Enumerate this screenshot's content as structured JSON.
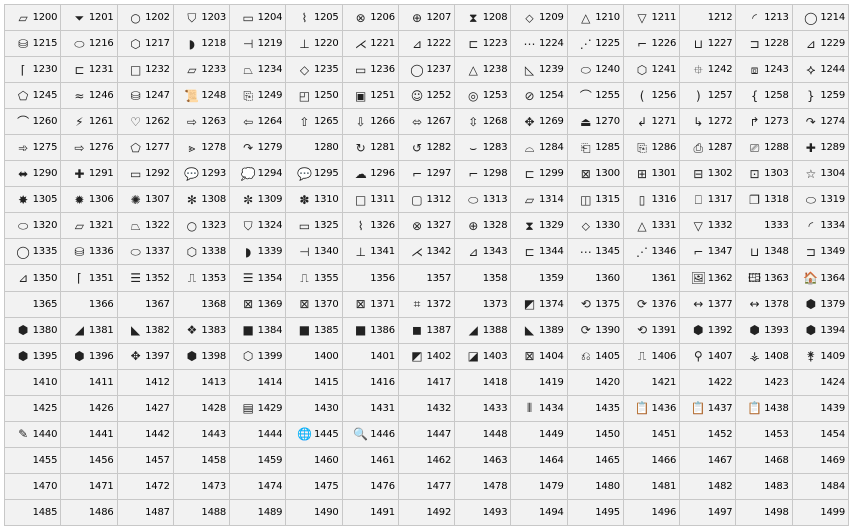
{
  "grid": {
    "columns": 15,
    "cells": [
      {
        "num": "1200",
        "glyph": "▱"
      },
      {
        "num": "1201",
        "glyph": "⏷"
      },
      {
        "num": "1202",
        "glyph": "○"
      },
      {
        "num": "1203",
        "glyph": "⛉"
      },
      {
        "num": "1204",
        "glyph": "▭"
      },
      {
        "num": "1205",
        "glyph": "⌇"
      },
      {
        "num": "1206",
        "glyph": "⊗"
      },
      {
        "num": "1207",
        "glyph": "⊕"
      },
      {
        "num": "1208",
        "glyph": "⧗"
      },
      {
        "num": "1209",
        "glyph": "⬦"
      },
      {
        "num": "1210",
        "glyph": "△"
      },
      {
        "num": "1211",
        "glyph": "▽"
      },
      {
        "num": "1212",
        "glyph": ""
      },
      {
        "num": "1213",
        "glyph": "◜"
      },
      {
        "num": "1214",
        "glyph": "◯"
      },
      {
        "num": "1215",
        "glyph": "⛁"
      },
      {
        "num": "1216",
        "glyph": "⬭"
      },
      {
        "num": "1217",
        "glyph": "⬡"
      },
      {
        "num": "1218",
        "glyph": "◗"
      },
      {
        "num": "1219",
        "glyph": "⊣"
      },
      {
        "num": "1220",
        "glyph": "⊥"
      },
      {
        "num": "1221",
        "glyph": "⋌"
      },
      {
        "num": "1222",
        "glyph": "⊿"
      },
      {
        "num": "1223",
        "glyph": "⊏"
      },
      {
        "num": "1224",
        "glyph": "⋯"
      },
      {
        "num": "1225",
        "glyph": "⋰"
      },
      {
        "num": "1226",
        "glyph": "⌐"
      },
      {
        "num": "1227",
        "glyph": "⊔"
      },
      {
        "num": "1228",
        "glyph": "⊐"
      },
      {
        "num": "1229",
        "glyph": "⊿"
      },
      {
        "num": "1230",
        "glyph": "⌈"
      },
      {
        "num": "1231",
        "glyph": "⊏"
      },
      {
        "num": "1232",
        "glyph": "□"
      },
      {
        "num": "1233",
        "glyph": "▱"
      },
      {
        "num": "1234",
        "glyph": "⏢"
      },
      {
        "num": "1235",
        "glyph": "◇"
      },
      {
        "num": "1236",
        "glyph": "▭"
      },
      {
        "num": "1237",
        "glyph": "◯"
      },
      {
        "num": "1238",
        "glyph": "△"
      },
      {
        "num": "1239",
        "glyph": "◺"
      },
      {
        "num": "1240",
        "glyph": "⬭"
      },
      {
        "num": "1241",
        "glyph": "⬡"
      },
      {
        "num": "1242",
        "glyph": "⯐"
      },
      {
        "num": "1243",
        "glyph": "⧈"
      },
      {
        "num": "1244",
        "glyph": "⯎"
      },
      {
        "num": "1245",
        "glyph": "⬠"
      },
      {
        "num": "1246",
        "glyph": "≈"
      },
      {
        "num": "1247",
        "glyph": "⛁"
      },
      {
        "num": "1248",
        "glyph": "📜"
      },
      {
        "num": "1249",
        "glyph": "⎘"
      },
      {
        "num": "1250",
        "glyph": "◰"
      },
      {
        "num": "1251",
        "glyph": "▣"
      },
      {
        "num": "1252",
        "glyph": "☺"
      },
      {
        "num": "1253",
        "glyph": "◎"
      },
      {
        "num": "1254",
        "glyph": "⊘"
      },
      {
        "num": "1255",
        "glyph": "⌒"
      },
      {
        "num": "1256",
        "glyph": "("
      },
      {
        "num": "1257",
        "glyph": ")"
      },
      {
        "num": "1258",
        "glyph": "{"
      },
      {
        "num": "1259",
        "glyph": "}"
      },
      {
        "num": "1260",
        "glyph": "⌒"
      },
      {
        "num": "1261",
        "glyph": "⚡"
      },
      {
        "num": "1262",
        "glyph": "♡"
      },
      {
        "num": "1263",
        "glyph": "⇨"
      },
      {
        "num": "1264",
        "glyph": "⇦"
      },
      {
        "num": "1265",
        "glyph": "⇧"
      },
      {
        "num": "1266",
        "glyph": "⇩"
      },
      {
        "num": "1267",
        "glyph": "⬄"
      },
      {
        "num": "1268",
        "glyph": "⇳"
      },
      {
        "num": "1269",
        "glyph": "✥"
      },
      {
        "num": "1270",
        "glyph": "⏏"
      },
      {
        "num": "1271",
        "glyph": "↲"
      },
      {
        "num": "1272",
        "glyph": "↳"
      },
      {
        "num": "1273",
        "glyph": "↱"
      },
      {
        "num": "1274",
        "glyph": "↷"
      },
      {
        "num": "1275",
        "glyph": "➾"
      },
      {
        "num": "1276",
        "glyph": "⇨"
      },
      {
        "num": "1277",
        "glyph": "⬠"
      },
      {
        "num": "1278",
        "glyph": "⪢"
      },
      {
        "num": "1279",
        "glyph": "↷"
      },
      {
        "num": "1280",
        "glyph": ""
      },
      {
        "num": "1281",
        "glyph": "↻"
      },
      {
        "num": "1282",
        "glyph": "↺"
      },
      {
        "num": "1283",
        "glyph": "⌣"
      },
      {
        "num": "1284",
        "glyph": "⌓"
      },
      {
        "num": "1285",
        "glyph": "⎗"
      },
      {
        "num": "1286",
        "glyph": "⎘"
      },
      {
        "num": "1287",
        "glyph": "⎙"
      },
      {
        "num": "1288",
        "glyph": "⎚"
      },
      {
        "num": "1289",
        "glyph": "✚"
      },
      {
        "num": "1290",
        "glyph": "⬌"
      },
      {
        "num": "1291",
        "glyph": "✚"
      },
      {
        "num": "1292",
        "glyph": "▭"
      },
      {
        "num": "1293",
        "glyph": "💬"
      },
      {
        "num": "1294",
        "glyph": "💭"
      },
      {
        "num": "1295",
        "glyph": "💬"
      },
      {
        "num": "1296",
        "glyph": "☁"
      },
      {
        "num": "1297",
        "glyph": "⌐"
      },
      {
        "num": "1298",
        "glyph": "⌐"
      },
      {
        "num": "1299",
        "glyph": "⊏"
      },
      {
        "num": "1300",
        "glyph": "⊠"
      },
      {
        "num": "1301",
        "glyph": "⊞"
      },
      {
        "num": "1302",
        "glyph": "⊟"
      },
      {
        "num": "1303",
        "glyph": "⊡"
      },
      {
        "num": "1304",
        "glyph": "☆"
      },
      {
        "num": "1305",
        "glyph": "✸"
      },
      {
        "num": "1306",
        "glyph": "✹"
      },
      {
        "num": "1307",
        "glyph": "✺"
      },
      {
        "num": "1308",
        "glyph": "✻"
      },
      {
        "num": "1309",
        "glyph": "✼"
      },
      {
        "num": "1310",
        "glyph": "✽"
      },
      {
        "num": "1311",
        "glyph": "□"
      },
      {
        "num": "1312",
        "glyph": "▢"
      },
      {
        "num": "1313",
        "glyph": "⬭"
      },
      {
        "num": "1314",
        "glyph": "▱"
      },
      {
        "num": "1315",
        "glyph": "◫"
      },
      {
        "num": "1316",
        "glyph": "▯"
      },
      {
        "num": "1317",
        "glyph": "⎕"
      },
      {
        "num": "1318",
        "glyph": "❐"
      },
      {
        "num": "1319",
        "glyph": "⬭"
      },
      {
        "num": "1320",
        "glyph": "⬭"
      },
      {
        "num": "1321",
        "glyph": "▱"
      },
      {
        "num": "1322",
        "glyph": "⏢"
      },
      {
        "num": "1323",
        "glyph": "○"
      },
      {
        "num": "1324",
        "glyph": "⛉"
      },
      {
        "num": "1325",
        "glyph": "▭"
      },
      {
        "num": "1326",
        "glyph": "⌇"
      },
      {
        "num": "1327",
        "glyph": "⊗"
      },
      {
        "num": "1328",
        "glyph": "⊕"
      },
      {
        "num": "1329",
        "glyph": "⧗"
      },
      {
        "num": "1330",
        "glyph": "⬦"
      },
      {
        "num": "1331",
        "glyph": "△"
      },
      {
        "num": "1332",
        "glyph": "▽"
      },
      {
        "num": "1333",
        "glyph": ""
      },
      {
        "num": "1334",
        "glyph": "◜"
      },
      {
        "num": "1335",
        "glyph": "◯"
      },
      {
        "num": "1336",
        "glyph": "⛁"
      },
      {
        "num": "1337",
        "glyph": "⬭"
      },
      {
        "num": "1338",
        "glyph": "⬡"
      },
      {
        "num": "1339",
        "glyph": "◗"
      },
      {
        "num": "1340",
        "glyph": "⊣"
      },
      {
        "num": "1341",
        "glyph": "⊥"
      },
      {
        "num": "1342",
        "glyph": "⋌"
      },
      {
        "num": "1343",
        "glyph": "⊿"
      },
      {
        "num": "1344",
        "glyph": "⊏"
      },
      {
        "num": "1345",
        "glyph": "⋯"
      },
      {
        "num": "1346",
        "glyph": "⋰"
      },
      {
        "num": "1347",
        "glyph": "⌐"
      },
      {
        "num": "1348",
        "glyph": "⊔"
      },
      {
        "num": "1349",
        "glyph": "⊐"
      },
      {
        "num": "1350",
        "glyph": "⊿"
      },
      {
        "num": "1351",
        "glyph": "⌈"
      },
      {
        "num": "1352",
        "glyph": "☰"
      },
      {
        "num": "1353",
        "glyph": "⎍"
      },
      {
        "num": "1354",
        "glyph": "☰"
      },
      {
        "num": "1355",
        "glyph": "⎍"
      },
      {
        "num": "1356",
        "glyph": ""
      },
      {
        "num": "1357",
        "glyph": ""
      },
      {
        "num": "1358",
        "glyph": ""
      },
      {
        "num": "1359",
        "glyph": ""
      },
      {
        "num": "1360",
        "glyph": ""
      },
      {
        "num": "1361",
        "glyph": ""
      },
      {
        "num": "1362",
        "glyph": "🖼"
      },
      {
        "num": "1363",
        "glyph": "🖽"
      },
      {
        "num": "1364",
        "glyph": "🏠"
      },
      {
        "num": "1365",
        "glyph": ""
      },
      {
        "num": "1366",
        "glyph": ""
      },
      {
        "num": "1367",
        "glyph": ""
      },
      {
        "num": "1368",
        "glyph": ""
      },
      {
        "num": "1369",
        "glyph": "⊠"
      },
      {
        "num": "1370",
        "glyph": "⊠"
      },
      {
        "num": "1371",
        "glyph": "⊠"
      },
      {
        "num": "1372",
        "glyph": "⌗"
      },
      {
        "num": "1373",
        "glyph": ""
      },
      {
        "num": "1374",
        "glyph": "◩"
      },
      {
        "num": "1375",
        "glyph": "⟲"
      },
      {
        "num": "1376",
        "glyph": "⟳"
      },
      {
        "num": "1377",
        "glyph": "↔"
      },
      {
        "num": "1378",
        "glyph": "↔"
      },
      {
        "num": "1379",
        "glyph": "⬢"
      },
      {
        "num": "1380",
        "glyph": "⬢"
      },
      {
        "num": "1381",
        "glyph": "◢"
      },
      {
        "num": "1382",
        "glyph": "◣"
      },
      {
        "num": "1383",
        "glyph": "❖"
      },
      {
        "num": "1384",
        "glyph": "■"
      },
      {
        "num": "1385",
        "glyph": "■"
      },
      {
        "num": "1386",
        "glyph": "■"
      },
      {
        "num": "1387",
        "glyph": "◼"
      },
      {
        "num": "1388",
        "glyph": "◢"
      },
      {
        "num": "1389",
        "glyph": "◣"
      },
      {
        "num": "1390",
        "glyph": "⟳"
      },
      {
        "num": "1391",
        "glyph": "⟲"
      },
      {
        "num": "1392",
        "glyph": "⬢"
      },
      {
        "num": "1393",
        "glyph": "⬢"
      },
      {
        "num": "1394",
        "glyph": "⬢"
      },
      {
        "num": "1395",
        "glyph": "⬢"
      },
      {
        "num": "1396",
        "glyph": "⬢"
      },
      {
        "num": "1397",
        "glyph": "✥"
      },
      {
        "num": "1398",
        "glyph": "⬢"
      },
      {
        "num": "1399",
        "glyph": "⬡"
      },
      {
        "num": "1400",
        "glyph": ""
      },
      {
        "num": "1401",
        "glyph": ""
      },
      {
        "num": "1402",
        "glyph": "◩"
      },
      {
        "num": "1403",
        "glyph": "◪"
      },
      {
        "num": "1404",
        "glyph": "⊠"
      },
      {
        "num": "1405",
        "glyph": "⎌"
      },
      {
        "num": "1406",
        "glyph": "⎍"
      },
      {
        "num": "1407",
        "glyph": "⚲"
      },
      {
        "num": "1408",
        "glyph": "⚶"
      },
      {
        "num": "1409",
        "glyph": "⚵"
      },
      {
        "num": "1410",
        "glyph": ""
      },
      {
        "num": "1411",
        "glyph": ""
      },
      {
        "num": "1412",
        "glyph": ""
      },
      {
        "num": "1413",
        "glyph": ""
      },
      {
        "num": "1414",
        "glyph": ""
      },
      {
        "num": "1415",
        "glyph": ""
      },
      {
        "num": "1416",
        "glyph": ""
      },
      {
        "num": "1417",
        "glyph": ""
      },
      {
        "num": "1418",
        "glyph": ""
      },
      {
        "num": "1419",
        "glyph": ""
      },
      {
        "num": "1420",
        "glyph": ""
      },
      {
        "num": "1421",
        "glyph": ""
      },
      {
        "num": "1422",
        "glyph": ""
      },
      {
        "num": "1423",
        "glyph": ""
      },
      {
        "num": "1424",
        "glyph": ""
      },
      {
        "num": "1425",
        "glyph": ""
      },
      {
        "num": "1426",
        "glyph": ""
      },
      {
        "num": "1427",
        "glyph": ""
      },
      {
        "num": "1428",
        "glyph": ""
      },
      {
        "num": "1429",
        "glyph": "▤"
      },
      {
        "num": "1430",
        "glyph": ""
      },
      {
        "num": "1431",
        "glyph": ""
      },
      {
        "num": "1432",
        "glyph": ""
      },
      {
        "num": "1433",
        "glyph": ""
      },
      {
        "num": "1434",
        "glyph": "⦀"
      },
      {
        "num": "1435",
        "glyph": ""
      },
      {
        "num": "1436",
        "glyph": "📋"
      },
      {
        "num": "1437",
        "glyph": "📋"
      },
      {
        "num": "1438",
        "glyph": "📋"
      },
      {
        "num": "1439",
        "glyph": ""
      },
      {
        "num": "1440",
        "glyph": "✎"
      },
      {
        "num": "1441",
        "glyph": ""
      },
      {
        "num": "1442",
        "glyph": ""
      },
      {
        "num": "1443",
        "glyph": ""
      },
      {
        "num": "1444",
        "glyph": ""
      },
      {
        "num": "1445",
        "glyph": "🌐"
      },
      {
        "num": "1446",
        "glyph": "🔍"
      },
      {
        "num": "1447",
        "glyph": ""
      },
      {
        "num": "1448",
        "glyph": ""
      },
      {
        "num": "1449",
        "glyph": ""
      },
      {
        "num": "1450",
        "glyph": ""
      },
      {
        "num": "1451",
        "glyph": ""
      },
      {
        "num": "1452",
        "glyph": ""
      },
      {
        "num": "1453",
        "glyph": ""
      },
      {
        "num": "1454",
        "glyph": ""
      },
      {
        "num": "1455",
        "glyph": ""
      },
      {
        "num": "1456",
        "glyph": ""
      },
      {
        "num": "1457",
        "glyph": ""
      },
      {
        "num": "1458",
        "glyph": ""
      },
      {
        "num": "1459",
        "glyph": ""
      },
      {
        "num": "1460",
        "glyph": ""
      },
      {
        "num": "1461",
        "glyph": ""
      },
      {
        "num": "1462",
        "glyph": ""
      },
      {
        "num": "1463",
        "glyph": ""
      },
      {
        "num": "1464",
        "glyph": ""
      },
      {
        "num": "1465",
        "glyph": ""
      },
      {
        "num": "1466",
        "glyph": ""
      },
      {
        "num": "1467",
        "glyph": ""
      },
      {
        "num": "1468",
        "glyph": ""
      },
      {
        "num": "1469",
        "glyph": ""
      },
      {
        "num": "1470",
        "glyph": ""
      },
      {
        "num": "1471",
        "glyph": ""
      },
      {
        "num": "1472",
        "glyph": ""
      },
      {
        "num": "1473",
        "glyph": ""
      },
      {
        "num": "1474",
        "glyph": ""
      },
      {
        "num": "1475",
        "glyph": ""
      },
      {
        "num": "1476",
        "glyph": ""
      },
      {
        "num": "1477",
        "glyph": ""
      },
      {
        "num": "1478",
        "glyph": ""
      },
      {
        "num": "1479",
        "glyph": ""
      },
      {
        "num": "1480",
        "glyph": ""
      },
      {
        "num": "1481",
        "glyph": ""
      },
      {
        "num": "1482",
        "glyph": ""
      },
      {
        "num": "1483",
        "glyph": ""
      },
      {
        "num": "1484",
        "glyph": ""
      },
      {
        "num": "1485",
        "glyph": ""
      },
      {
        "num": "1486",
        "glyph": ""
      },
      {
        "num": "1487",
        "glyph": ""
      },
      {
        "num": "1488",
        "glyph": ""
      },
      {
        "num": "1489",
        "glyph": ""
      },
      {
        "num": "1490",
        "glyph": ""
      },
      {
        "num": "1491",
        "glyph": ""
      },
      {
        "num": "1492",
        "glyph": ""
      },
      {
        "num": "1493",
        "glyph": ""
      },
      {
        "num": "1494",
        "glyph": ""
      },
      {
        "num": "1495",
        "glyph": ""
      },
      {
        "num": "1496",
        "glyph": ""
      },
      {
        "num": "1497",
        "glyph": ""
      },
      {
        "num": "1498",
        "glyph": ""
      },
      {
        "num": "1499",
        "glyph": ""
      }
    ]
  },
  "colors": {
    "grid_line": "#c8c8c8",
    "cell_bg": "#f2f2f2",
    "text": "#000000"
  }
}
